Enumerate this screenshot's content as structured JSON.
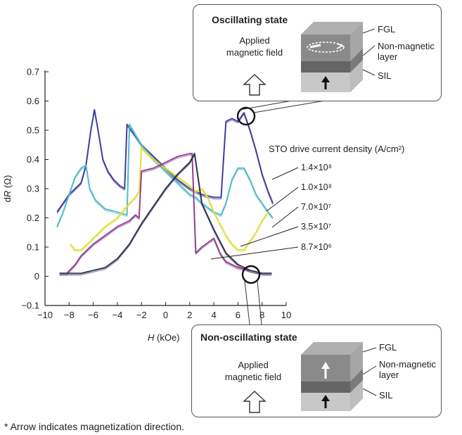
{
  "chart_data": {
    "type": "line",
    "xlabel": "H (kOe)",
    "ylabel": "dR (Ω)",
    "xlim": [
      -10,
      10
    ],
    "ylim": [
      -0.1,
      0.7
    ],
    "xticks": [
      "−10",
      "−8",
      "−6",
      "−4",
      "−2",
      "0",
      "2",
      "4",
      "6",
      "8",
      "10"
    ],
    "yticks": [
      "−0.1",
      "0",
      "0.1",
      "0.2",
      "0.3",
      "0.4",
      "0.5",
      "0.6",
      "0.7"
    ],
    "legend_title": "STO drive current density (A/cm²)",
    "series": [
      {
        "name": "1.4×10⁸",
        "color": "#3a3a9a",
        "points": [
          [
            -9,
            0.22
          ],
          [
            -8.5,
            0.25
          ],
          [
            -8,
            0.28
          ],
          [
            -7.5,
            0.3
          ],
          [
            -7,
            0.32
          ],
          [
            -6.6,
            0.38
          ],
          [
            -6.2,
            0.5
          ],
          [
            -5.9,
            0.57
          ],
          [
            -5.6,
            0.5
          ],
          [
            -5.2,
            0.4
          ],
          [
            -4.8,
            0.36
          ],
          [
            -4.3,
            0.33
          ],
          [
            -3.8,
            0.31
          ],
          [
            -3.4,
            0.3
          ],
          [
            -3.2,
            0.52
          ],
          [
            -2.5,
            0.48
          ],
          [
            -2,
            0.45
          ],
          [
            -1,
            0.41
          ],
          [
            0,
            0.37
          ],
          [
            1,
            0.33
          ],
          [
            2,
            0.3
          ],
          [
            3,
            0.28
          ],
          [
            4,
            0.27
          ],
          [
            4.6,
            0.27
          ],
          [
            5,
            0.53
          ],
          [
            5.5,
            0.54
          ],
          [
            6,
            0.53
          ],
          [
            6.5,
            0.56
          ],
          [
            7,
            0.5
          ],
          [
            7.5,
            0.43
          ],
          [
            8,
            0.35
          ],
          [
            8.5,
            0.29
          ],
          [
            8.9,
            0.25
          ]
        ]
      },
      {
        "name": "1.0×10⁸",
        "color": "#4fb8c8",
        "points": [
          [
            -9,
            0.17
          ],
          [
            -8.5,
            0.22
          ],
          [
            -8,
            0.28
          ],
          [
            -7.5,
            0.34
          ],
          [
            -7,
            0.37
          ],
          [
            -6.6,
            0.38
          ],
          [
            -6.3,
            0.3
          ],
          [
            -5.8,
            0.26
          ],
          [
            -5,
            0.23
          ],
          [
            -4,
            0.22
          ],
          [
            -3.2,
            0.21
          ],
          [
            -3,
            0.52
          ],
          [
            -2,
            0.45
          ],
          [
            -1,
            0.4
          ],
          [
            0,
            0.36
          ],
          [
            1,
            0.32
          ],
          [
            2,
            0.28
          ],
          [
            2.5,
            0.27
          ],
          [
            3,
            0.25
          ],
          [
            4,
            0.22
          ],
          [
            4.6,
            0.21
          ],
          [
            5,
            0.25
          ],
          [
            5.5,
            0.33
          ],
          [
            6,
            0.37
          ],
          [
            6.5,
            0.37
          ],
          [
            7,
            0.33
          ],
          [
            7.5,
            0.28
          ],
          [
            8,
            0.25
          ],
          [
            8.5,
            0.22
          ],
          [
            8.9,
            0.2
          ]
        ]
      },
      {
        "name": "7.0×10⁷",
        "color": "#dede3a",
        "points": [
          [
            -7.9,
            0.11
          ],
          [
            -7.5,
            0.09
          ],
          [
            -7,
            0.09
          ],
          [
            -6.5,
            0.11
          ],
          [
            -6,
            0.13
          ],
          [
            -5,
            0.17
          ],
          [
            -4,
            0.2
          ],
          [
            -3,
            0.25
          ],
          [
            -2.5,
            0.27
          ],
          [
            -2.2,
            0.29
          ],
          [
            -2,
            0.44
          ],
          [
            -1.5,
            0.42
          ],
          [
            -1,
            0.4
          ],
          [
            0,
            0.37
          ],
          [
            1,
            0.34
          ],
          [
            2,
            0.31
          ],
          [
            2.5,
            0.29
          ],
          [
            3,
            0.3
          ],
          [
            3.5,
            0.27
          ],
          [
            4,
            0.22
          ],
          [
            4.5,
            0.18
          ],
          [
            5,
            0.14
          ],
          [
            5.5,
            0.11
          ],
          [
            6,
            0.09
          ],
          [
            6.5,
            0.09
          ],
          [
            7,
            0.12
          ],
          [
            7.5,
            0.15
          ],
          [
            8,
            0.19
          ],
          [
            8.5,
            0.22
          ]
        ]
      },
      {
        "name": "3.5×10⁷",
        "color": "#8e3a8e",
        "points": [
          [
            -8.8,
            0.01
          ],
          [
            -8.2,
            0.01
          ],
          [
            -7.5,
            0.04
          ],
          [
            -7,
            0.07
          ],
          [
            -6,
            0.11
          ],
          [
            -5,
            0.14
          ],
          [
            -4,
            0.17
          ],
          [
            -3,
            0.19
          ],
          [
            -2.5,
            0.21
          ],
          [
            -2.2,
            0.2
          ],
          [
            -2,
            0.36
          ],
          [
            -1,
            0.37
          ],
          [
            0,
            0.39
          ],
          [
            1,
            0.41
          ],
          [
            2,
            0.42
          ],
          [
            2.2,
            0.42
          ],
          [
            2.5,
            0.08
          ],
          [
            3,
            0.1
          ],
          [
            4,
            0.13
          ],
          [
            4.5,
            0.08
          ],
          [
            5,
            0.05
          ],
          [
            6,
            0.03
          ],
          [
            7,
            0.02
          ],
          [
            8,
            0.01
          ],
          [
            8.8,
            0.01
          ]
        ]
      },
      {
        "name": "8.7×10⁶",
        "color": "#2d2d4d",
        "points": [
          [
            -8.8,
            0.01
          ],
          [
            -8,
            0.01
          ],
          [
            -7,
            0.01
          ],
          [
            -6,
            0.02
          ],
          [
            -5,
            0.03
          ],
          [
            -4,
            0.06
          ],
          [
            -3,
            0.11
          ],
          [
            -2,
            0.18
          ],
          [
            -1,
            0.24
          ],
          [
            0,
            0.3
          ],
          [
            1,
            0.35
          ],
          [
            2,
            0.39
          ],
          [
            2.4,
            0.42
          ],
          [
            3,
            0.25
          ],
          [
            4,
            0.16
          ],
          [
            5,
            0.08
          ],
          [
            6,
            0.04
          ],
          [
            7,
            0.02
          ],
          [
            8,
            0.01
          ],
          [
            8.8,
            0.01
          ]
        ]
      }
    ]
  },
  "callouts": {
    "oscillating": {
      "title": "Oscillating state",
      "field_label_line1": "Applied",
      "field_label_line2": "magnetic field",
      "layer_fgl": "FGL",
      "layer_nonmag_line1": "Non-magnetic",
      "layer_nonmag_line2": "layer",
      "layer_sil": "SIL"
    },
    "non_oscillating": {
      "title": "Non-oscillating state",
      "field_label_line1": "Applied",
      "field_label_line2": "magnetic field",
      "layer_fgl": "FGL",
      "layer_nonmag_line1": "Non-magnetic",
      "layer_nonmag_line2": "layer",
      "layer_sil": "SIL"
    }
  },
  "footnote": "* Arrow indicates magnetization direction."
}
